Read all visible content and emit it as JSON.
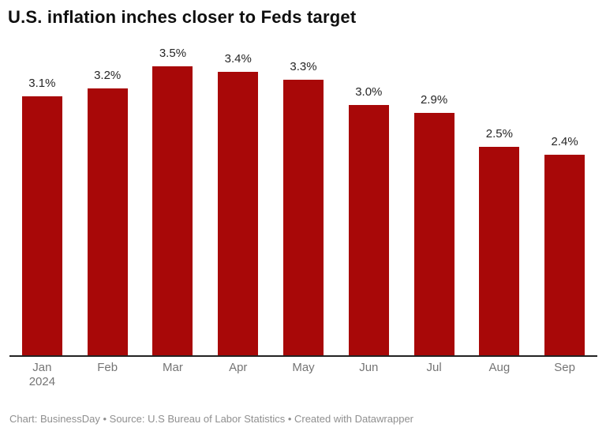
{
  "title": "U.S. inflation inches closer to Feds target",
  "chart_data": {
    "type": "bar",
    "title": "U.S. inflation inches closer to Feds target",
    "categories": [
      "Jan 2024",
      "Feb",
      "Mar",
      "Apr",
      "May",
      "Jun",
      "Jul",
      "Aug",
      "Sep"
    ],
    "values": [
      3.1,
      3.2,
      3.5,
      3.4,
      3.3,
      3.0,
      2.9,
      2.5,
      2.4
    ],
    "value_labels": [
      "3.1%",
      "3.2%",
      "3.5%",
      "3.4%",
      "3.3%",
      "3.0%",
      "2.9%",
      "2.5%",
      "2.4%"
    ],
    "xlabel": "",
    "ylabel": "",
    "ylim": [
      0,
      3.5
    ],
    "grid": false,
    "legend": false,
    "bar_color": "#a80808",
    "value_label_color": "#262626",
    "tick_label_color": "#757575",
    "axis_line_color": "#222222"
  },
  "footer": {
    "text": "Chart: BusinessDay • Source: U.S Bureau of Labor Statistics • Created with Datawrapper"
  }
}
